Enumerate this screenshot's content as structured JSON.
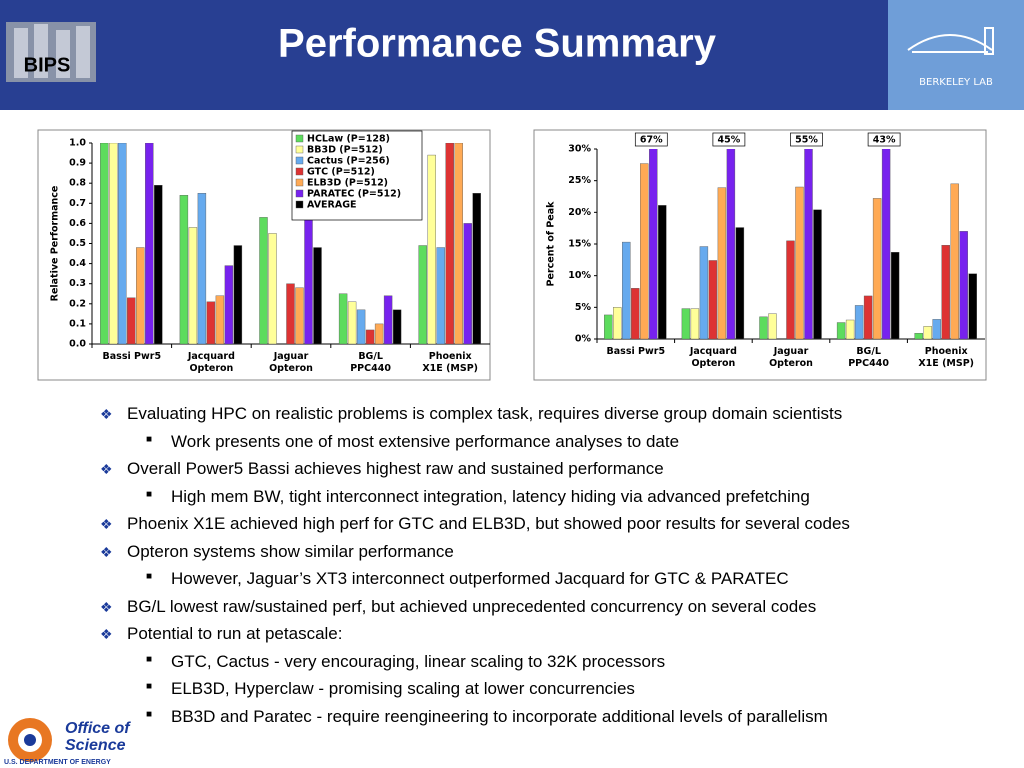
{
  "header": {
    "title": "Performance Summary",
    "logo_left": "BIPS",
    "logo_right": "BERKELEY LAB"
  },
  "chart_data": [
    {
      "type": "bar",
      "ylabel": "Relative Performance",
      "categories": [
        "Bassi Pwr5",
        "Jacquard Opteron",
        "Jaguar Opteron",
        "BG/L PPC440",
        "Phoenix X1E (MSP)"
      ],
      "ylim": [
        0,
        1
      ],
      "yticks": [
        {
          "value": 0,
          "label": "0.0"
        },
        0.1,
        0.2,
        0.3,
        0.4,
        0.5,
        0.6,
        0.7,
        0.8,
        0.9,
        {
          "value": 1,
          "label": "1.0"
        }
      ],
      "grid": false,
      "legend": "top-right",
      "series": [
        {
          "name": "HCLaw (P=128)",
          "color": "#5ddc5d",
          "values": [
            1.0,
            0.74,
            0.63,
            0.25,
            0.49
          ]
        },
        {
          "name": "BB3D (P=512)",
          "color": "#ffff99",
          "values": [
            1.0,
            0.58,
            0.55,
            0.21,
            0.94
          ]
        },
        {
          "name": "Cactus (P=256)",
          "color": "#66aaee",
          "values": [
            1.0,
            0.75,
            null,
            0.17,
            0.48
          ]
        },
        {
          "name": "GTC (P=512)",
          "color": "#dd3333",
          "values": [
            0.23,
            0.21,
            0.3,
            0.07,
            1.0
          ]
        },
        {
          "name": "ELB3D (P=512)",
          "color": "#ffaa55",
          "values": [
            0.48,
            0.24,
            0.28,
            0.1,
            1.0
          ]
        },
        {
          "name": "PARATEC (P=512)",
          "color": "#7722ee",
          "values": [
            1.0,
            0.39,
            0.64,
            0.24,
            0.6
          ]
        },
        {
          "name": "AVERAGE",
          "color": "#000000",
          "values": [
            0.79,
            0.49,
            0.48,
            0.17,
            0.75
          ]
        }
      ]
    },
    {
      "type": "bar",
      "ylabel": "Percent of Peak",
      "categories": [
        "Bassi Pwr5",
        "Jacquard Opteron",
        "Jaguar Opteron",
        "BG/L PPC440",
        "Phoenix X1E (MSP)"
      ],
      "ylim": [
        0,
        30
      ],
      "yticks": [
        {
          "value": 0,
          "label": "0%"
        },
        {
          "value": 5,
          "label": "5%"
        },
        {
          "value": 10,
          "label": "10%"
        },
        {
          "value": 15,
          "label": "15%"
        },
        {
          "value": 20,
          "label": "20%"
        },
        {
          "value": 25,
          "label": "25%"
        },
        {
          "value": 30,
          "label": "30%"
        }
      ],
      "grid": false,
      "series": [
        {
          "color": "#5ddc5d",
          "values": [
            3.8,
            4.8,
            3.5,
            2.6,
            0.9
          ]
        },
        {
          "color": "#ffff99",
          "values": [
            5,
            4.8,
            4,
            3,
            2
          ]
        },
        {
          "color": "#66aaee",
          "values": [
            15.3,
            14.6,
            null,
            5.3,
            3.1
          ]
        },
        {
          "color": "#dd3333",
          "values": [
            8,
            12.4,
            15.5,
            6.8,
            14.8
          ]
        },
        {
          "color": "#ffaa55",
          "values": [
            27.7,
            23.9,
            24,
            22.2,
            24.5
          ]
        },
        {
          "color": "#7722ee",
          "values": [
            67,
            45,
            55,
            43,
            17
          ],
          "value_labels": [
            "67%",
            "45%",
            "55%",
            "43%",
            null
          ]
        },
        {
          "color": "#000000",
          "values": [
            21.1,
            17.6,
            20.4,
            13.7,
            10.3
          ]
        }
      ]
    }
  ],
  "bullets": [
    {
      "level": 1,
      "text": "Evaluating HPC on realistic problems is complex task, requires diverse group domain scientists"
    },
    {
      "level": 2,
      "text": "Work presents one of most extensive performance analyses to date"
    },
    {
      "level": 1,
      "text": "Overall Power5 Bassi achieves highest raw and sustained performance"
    },
    {
      "level": 2,
      "text": "High mem BW, tight interconnect integration, latency hiding via advanced prefetching"
    },
    {
      "level": 1,
      "text": "Phoenix X1E achieved high perf for GTC and ELB3D, but showed poor results for several codes"
    },
    {
      "level": 1,
      "text": "Opteron systems show similar performance"
    },
    {
      "level": 2,
      "text": "However, Jaguar’s XT3 interconnect outperformed Jacquard for GTC & PARATEC"
    },
    {
      "level": 1,
      "text": "BG/L lowest raw/sustained perf, but achieved unprecedented concurrency on several codes"
    },
    {
      "level": 1,
      "text": "Potential to run at petascale:"
    },
    {
      "level": 2,
      "text": "GTC, Cactus - very encouraging, linear scaling to 32K processors"
    },
    {
      "level": 2,
      "text": "ELB3D, Hyperclaw - promising scaling at lower concurrencies"
    },
    {
      "level": 2,
      "text": "BB3D and Paratec - require reengineering to incorporate additional levels of parallelism"
    }
  ],
  "footer": {
    "logo_line1": "Office of",
    "logo_line2": "Science",
    "logo_line3": "U.S. DEPARTMENT OF ENERGY"
  }
}
